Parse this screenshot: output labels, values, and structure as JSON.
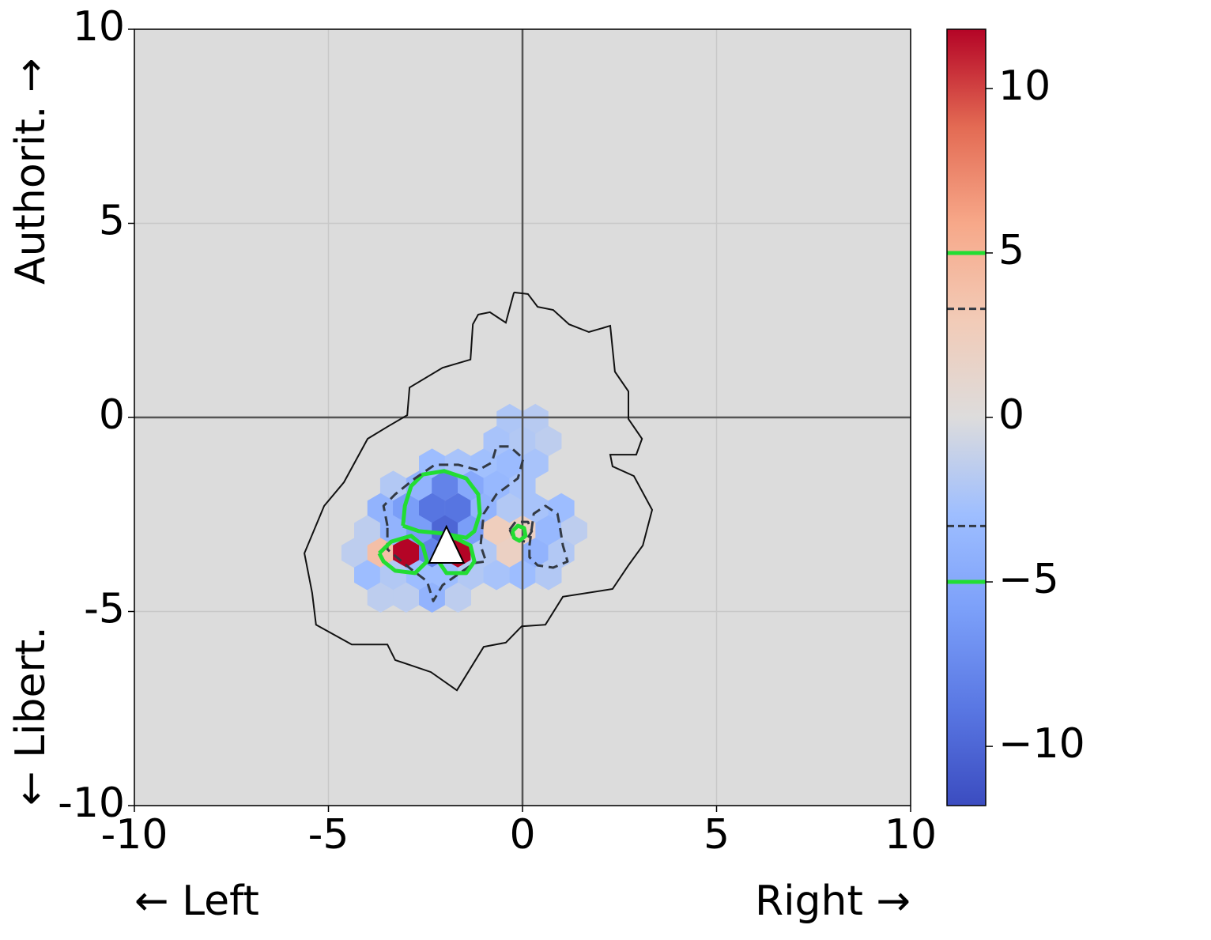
{
  "chart_data": {
    "type": "hexbin",
    "xlabel_left": "← Left",
    "xlabel_right": "Right →",
    "ylabel_top": "Authorit. →",
    "ylabel_bottom": "← Libert.",
    "xlim": [
      -10,
      10
    ],
    "ylim": [
      -10,
      10
    ],
    "xticks": [
      -10,
      -5,
      0,
      5,
      10
    ],
    "yticks": [
      -10,
      -5,
      0,
      5,
      10
    ],
    "grid": true,
    "background": "#dcdcdc",
    "colormap": "coolwarm",
    "clim": [
      -11.8,
      11.8
    ],
    "cticks": [
      {
        "value": -10,
        "label": "−10"
      },
      {
        "value": -5,
        "label": "−5"
      },
      0,
      5,
      10
    ],
    "hexbins": {
      "x": [
        -0.33,
        0.33,
        -0.67,
        0,
        0.67,
        -2.33,
        -1.66,
        -1.0,
        -0.33,
        0.33,
        -3.33,
        -2.66,
        -2.0,
        -1.33,
        -0.67,
        0,
        -3.66,
        -3.0,
        -2.33,
        -1.66,
        -1.0,
        -0.33,
        0.33,
        1.0,
        -4.0,
        -3.33,
        -2.66,
        -2.0,
        -1.33,
        -0.67,
        0,
        0.67,
        1.33,
        -4.33,
        -3.66,
        -3.0,
        -2.33,
        -1.66,
        -1.0,
        -0.33,
        0.33,
        1.0,
        -4.0,
        -3.33,
        -2.66,
        -2.0,
        -1.33,
        -0.67,
        0,
        0.67,
        -3.66,
        -3.0,
        -2.33,
        -1.66
      ],
      "y": [
        -0.04,
        -0.04,
        -0.61,
        -0.61,
        -0.61,
        -1.19,
        -1.19,
        -1.19,
        -1.19,
        -1.19,
        -1.76,
        -1.76,
        -1.76,
        -1.76,
        -1.76,
        -1.76,
        -2.34,
        -2.34,
        -2.34,
        -2.34,
        -2.34,
        -2.34,
        -2.34,
        -2.34,
        -2.91,
        -2.91,
        -2.91,
        -2.91,
        -2.91,
        -2.91,
        -2.91,
        -2.91,
        -2.91,
        -3.49,
        -3.49,
        -3.49,
        -3.49,
        -3.49,
        -3.49,
        -3.49,
        -3.49,
        -3.49,
        -4.06,
        -4.06,
        -4.06,
        -4.06,
        -4.06,
        -4.06,
        -4.06,
        -4.06,
        -4.64,
        -4.64,
        -4.64,
        -4.64
      ],
      "values": [
        -2.2,
        -1.8,
        -2.5,
        -2.0,
        -1.5,
        -3,
        -2.5,
        -2.8,
        -3.2,
        -2.5,
        -2,
        -4,
        -8,
        -5,
        -3.5,
        -2.5,
        -4,
        -6,
        -9,
        -9,
        -4,
        -2,
        -2.5,
        -3,
        -1.5,
        -4,
        -6,
        -10,
        -6,
        2.5,
        2,
        -3.5,
        -1.5,
        -1.5,
        4,
        12,
        -8,
        12,
        -2,
        2,
        -4,
        -2,
        -3,
        -2,
        -3,
        -3,
        -2,
        -2.5,
        -3,
        -2,
        -1.5,
        -1.5,
        -4,
        -1.5
      ]
    },
    "outline": {
      "color": "#111111",
      "x": [
        -0.22,
        0.14,
        0.39,
        0.79,
        1.2,
        1.71,
        2.26,
        2.38,
        2.73,
        2.73,
        3.08,
        2.93,
        2.26,
        2.32,
        2.87,
        3.34,
        3.1,
        2.73,
        2.32,
        1.04,
        0.59,
        -0.02,
        -0.43,
        -1.0,
        -1.69,
        -2.36,
        -3.28,
        -3.48,
        -4.4,
        -5.32,
        -5.42,
        -5.62,
        -5.11,
        -4.6,
        -3.99,
        -3.48,
        -2.97,
        -2.91,
        -2.06,
        -1.34,
        -1.28,
        -1.14,
        -0.84,
        -0.43,
        -0.22
      ],
      "y": [
        3.22,
        3.18,
        2.85,
        2.77,
        2.4,
        2.2,
        2.36,
        1.18,
        0.67,
        -0.04,
        -0.55,
        -0.96,
        -0.96,
        -1.26,
        -1.51,
        -2.38,
        -3.3,
        -3.81,
        -4.42,
        -4.62,
        -5.34,
        -5.38,
        -5.8,
        -5.91,
        -7.03,
        -6.56,
        -6.25,
        -5.85,
        -5.85,
        -5.34,
        -4.52,
        -3.5,
        -2.28,
        -1.67,
        -0.55,
        -0.24,
        0.06,
        0.77,
        1.28,
        1.49,
        2.4,
        2.65,
        2.71,
        2.44,
        3.22
      ]
    },
    "contour_levels": [
      {
        "level": -5,
        "color": "#22dd33",
        "dashed": false,
        "paths": [
          {
            "x": [
              -3.08,
              -3.03,
              -2.87,
              -2.57,
              -2.02,
              -1.45,
              -1.14,
              -1.1,
              -1.24,
              -1.45,
              -2.06,
              -2.67,
              -3.08
            ],
            "y": [
              -2.79,
              -2.28,
              -1.77,
              -1.47,
              -1.38,
              -1.57,
              -1.98,
              -2.48,
              -2.93,
              -3.1,
              -2.99,
              -2.93,
              -2.79
            ]
          }
        ]
      },
      {
        "level": -3.3,
        "color": "#333a44",
        "dashed": true,
        "paths": [
          {
            "x": [
              -3.48,
              -3.58,
              -3.28,
              -2.77,
              -2.26,
              -1.65,
              -1.14,
              -0.79,
              -0.67,
              -0.33,
              0.02,
              -0.12,
              -0.67,
              -1.0,
              -1.08,
              -0.94,
              -1.24,
              -2.06,
              -2.3,
              -2.46,
              -2.87,
              -3.48,
              -3.48
            ],
            "y": [
              -2.79,
              -2.28,
              -1.98,
              -1.57,
              -1.22,
              -1.22,
              -1.36,
              -1.16,
              -0.75,
              -0.75,
              -1.06,
              -1.57,
              -1.98,
              -2.48,
              -3.3,
              -3.71,
              -3.75,
              -4.32,
              -4.73,
              -4.22,
              -3.91,
              -3.4,
              -2.79
            ]
          },
          {
            "x": [
              0.18,
              0.29,
              0.59,
              0.9,
              0.96,
              1.04,
              1.16,
              0.79,
              0.39,
              0.18,
              0.18
            ],
            "y": [
              -3.3,
              -2.48,
              -2.28,
              -2.48,
              -2.79,
              -3.3,
              -3.71,
              -3.87,
              -3.81,
              -3.6,
              -3.3
            ]
          }
        ]
      },
      {
        "level": 3.3,
        "color": "#333a44",
        "dashed": true,
        "paths": [
          {
            "x": [
              -0.33,
              -0.18,
              0.14,
              0.24,
              0.08,
              -0.22,
              -0.33
            ],
            "y": [
              -2.89,
              -2.69,
              -2.69,
              -2.93,
              -3.2,
              -3.14,
              -2.89
            ]
          }
        ]
      },
      {
        "level": 5,
        "color": "#22dd33",
        "dashed": false,
        "paths": [
          {
            "x": [
              -3.69,
              -3.38,
              -2.87,
              -2.57,
              -2.46,
              -2.77,
              -3.28,
              -3.58,
              -3.69
            ],
            "y": [
              -3.5,
              -3.2,
              -3.05,
              -3.3,
              -3.71,
              -4.01,
              -3.95,
              -3.71,
              -3.5
            ]
          },
          {
            "x": [
              -2.06,
              -1.75,
              -1.34,
              -1.24,
              -1.45,
              -1.96,
              -2.16,
              -2.06
            ],
            "y": [
              -3.3,
              -3.1,
              -3.3,
              -3.71,
              -4.01,
              -4.01,
              -3.71,
              -3.3
            ]
          },
          {
            "x": [
              -0.26,
              -0.12,
              0.04,
              0.08,
              -0.08,
              -0.22,
              -0.26
            ],
            "y": [
              -2.93,
              -2.79,
              -2.85,
              -3.05,
              -3.18,
              -3.1,
              -2.93
            ]
          }
        ]
      }
    ],
    "marker": {
      "x": -1.96,
      "y": -3.3
    }
  }
}
